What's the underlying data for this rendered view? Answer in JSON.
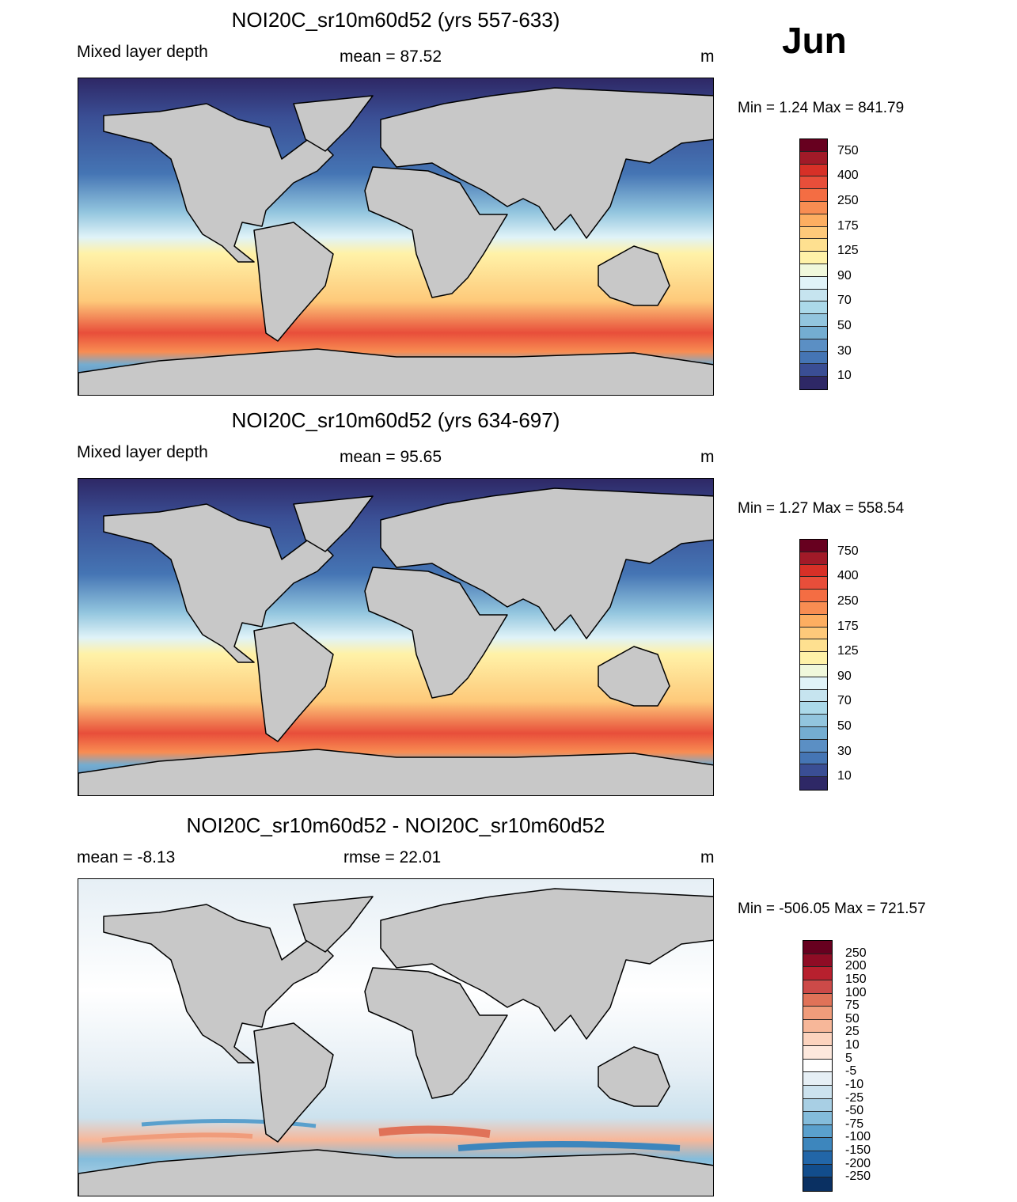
{
  "month": "Jun",
  "panels": [
    {
      "title": "NOI20C_sr10m60d52 (yrs 557-633)",
      "left_label": "Mixed layer depth",
      "center_label": "mean =  87.52",
      "units": "m",
      "minmax": "Min =    1.24 Max = 841.79"
    },
    {
      "title": "NOI20C_sr10m60d52 (yrs 634-697)",
      "left_label": "Mixed layer depth",
      "center_label": "mean =  95.65",
      "units": "m",
      "minmax": "Min =    1.27 Max = 558.54"
    },
    {
      "title": "NOI20C_sr10m60d52 - NOI20C_sr10m60d52",
      "left_label": "mean =  -8.13",
      "center_label": "rmse =  22.01",
      "units": "m",
      "minmax": "Min = -506.05 Max = 721.57"
    }
  ],
  "colorbar_mld": {
    "labels": [
      "750",
      "400",
      "250",
      "175",
      "125",
      "90",
      "70",
      "50",
      "30",
      "10"
    ],
    "colors": [
      "#67001f",
      "#a11a28",
      "#d73027",
      "#e84e3a",
      "#f46d43",
      "#f88d52",
      "#fdae61",
      "#fec97a",
      "#fee090",
      "#fff2a8",
      "#f0f8dc",
      "#e0f3f8",
      "#c6e4ef",
      "#abd9e9",
      "#92c5de",
      "#74add1",
      "#5b8fc4",
      "#4575b4",
      "#3a4e94",
      "#2e2866"
    ]
  },
  "colorbar_diff": {
    "labels": [
      "250",
      "200",
      "150",
      "100",
      "75",
      "50",
      "25",
      "10",
      "5",
      "-5",
      "-10",
      "-25",
      "-50",
      "-75",
      "-100",
      "-150",
      "-200",
      "-250"
    ],
    "colors": [
      "#67001f",
      "#8f0c25",
      "#b8202e",
      "#cc4a48",
      "#e07258",
      "#f09c7b",
      "#f7b799",
      "#fcd3be",
      "#fde8dd",
      "#ffffff",
      "#e6eff5",
      "#cce2ee",
      "#a8cfe4",
      "#84bcdb",
      "#5aa0cd",
      "#3d86bd",
      "#2266a8",
      "#124d8c",
      "#0a3062"
    ]
  }
}
